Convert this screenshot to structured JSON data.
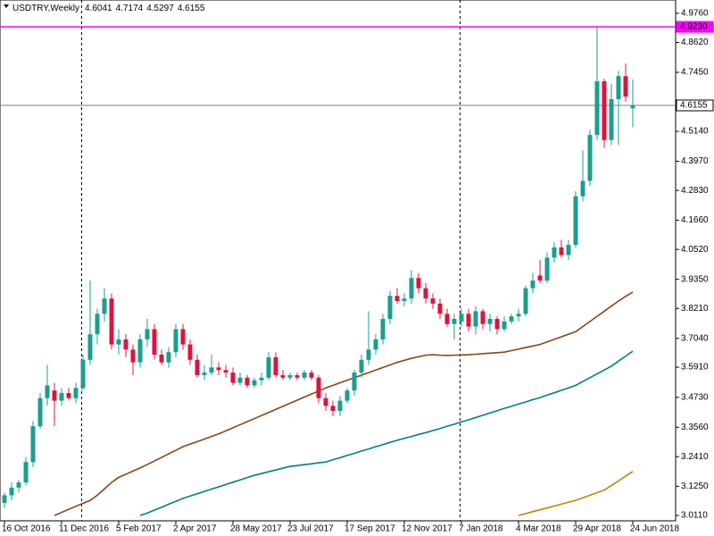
{
  "chart_data": {
    "type": "candlestick",
    "title": "USDTRY,Weekly",
    "categories": [
      "16 Oct 2016",
      null,
      null,
      null,
      null,
      null,
      null,
      null,
      "11 Dec 2016",
      null,
      null,
      null,
      null,
      null,
      null,
      null,
      "5 Feb 2017",
      null,
      null,
      null,
      null,
      null,
      null,
      null,
      "2 Apr 2017",
      null,
      null,
      null,
      null,
      null,
      null,
      null,
      "28 May 2017",
      null,
      null,
      null,
      null,
      null,
      null,
      null,
      "23 Jul 2017",
      null,
      null,
      null,
      null,
      null,
      null,
      null,
      "17 Sep 2017",
      null,
      null,
      null,
      null,
      null,
      null,
      null,
      "12 Nov 2017",
      null,
      null,
      null,
      null,
      null,
      null,
      null,
      "7 Jan 2018",
      null,
      null,
      null,
      null,
      null,
      null,
      null,
      "4 Mar 2018",
      null,
      null,
      null,
      null,
      null,
      null,
      null,
      "29 Apr 2018",
      null,
      null,
      null,
      null,
      null,
      null,
      null,
      "24 Jun 2018"
    ],
    "open": [
      3.06,
      3.09,
      3.12,
      3.14,
      3.22,
      3.36,
      3.47,
      3.5,
      3.46,
      3.49,
      3.47,
      3.51,
      3.62,
      3.72,
      3.8,
      3.86,
      3.68,
      3.7,
      3.66,
      3.61,
      3.7,
      3.74,
      3.64,
      3.61,
      3.65,
      3.74,
      3.68,
      3.62,
      3.56,
      3.57,
      3.59,
      3.58,
      3.57,
      3.53,
      3.55,
      3.52,
      3.54,
      3.55,
      3.63,
      3.56,
      3.55,
      3.56,
      3.55,
      3.57,
      3.55,
      3.47,
      3.44,
      3.42,
      3.46,
      3.5,
      3.57,
      3.62,
      3.66,
      3.7,
      3.78,
      3.87,
      3.85,
      3.86,
      3.94,
      3.9,
      3.86,
      3.84,
      3.8,
      3.76,
      3.77,
      3.8,
      3.75,
      3.81,
      3.76,
      3.78,
      3.74,
      3.77,
      3.79,
      3.8,
      3.9,
      3.95,
      3.93,
      4.02,
      4.06,
      4.03,
      4.07,
      4.26,
      4.32,
      4.5,
      4.71,
      4.48,
      4.64,
      4.73,
      4.6041
    ],
    "high": [
      3.1,
      3.14,
      3.15,
      3.24,
      3.38,
      3.49,
      3.6,
      3.53,
      3.51,
      3.51,
      3.53,
      3.64,
      3.93,
      3.82,
      3.9,
      3.88,
      3.74,
      3.72,
      3.68,
      3.72,
      3.78,
      3.76,
      3.66,
      3.67,
      3.76,
      3.76,
      3.7,
      3.64,
      3.6,
      3.64,
      3.61,
      3.6,
      3.59,
      3.57,
      3.56,
      3.55,
      3.57,
      3.65,
      3.65,
      3.58,
      3.57,
      3.57,
      3.58,
      3.58,
      3.56,
      3.49,
      3.46,
      3.48,
      3.51,
      3.58,
      3.64,
      3.81,
      3.72,
      3.8,
      3.89,
      3.9,
      3.88,
      3.97,
      3.96,
      3.92,
      3.88,
      3.86,
      3.82,
      3.8,
      3.82,
      3.82,
      3.83,
      3.82,
      3.8,
      3.79,
      3.79,
      3.8,
      3.82,
      3.91,
      3.96,
      4.01,
      4.04,
      4.08,
      4.09,
      4.09,
      4.28,
      4.44,
      4.52,
      4.923,
      4.72,
      4.7,
      4.75,
      4.78,
      4.7174
    ],
    "low": [
      3.04,
      3.07,
      3.1,
      3.13,
      3.2,
      3.35,
      3.44,
      3.36,
      3.44,
      3.46,
      3.45,
      3.5,
      3.6,
      3.68,
      3.77,
      3.66,
      3.64,
      3.63,
      3.56,
      3.59,
      3.67,
      3.62,
      3.6,
      3.59,
      3.63,
      3.66,
      3.6,
      3.55,
      3.54,
      3.56,
      3.56,
      3.55,
      3.52,
      3.52,
      3.51,
      3.51,
      3.52,
      3.54,
      3.55,
      3.54,
      3.54,
      3.54,
      3.54,
      3.54,
      3.45,
      3.42,
      3.4,
      3.4,
      3.45,
      3.48,
      3.55,
      3.6,
      3.64,
      3.68,
      3.76,
      3.84,
      3.83,
      3.84,
      3.88,
      3.84,
      3.82,
      3.78,
      3.75,
      3.7,
      3.75,
      3.73,
      3.72,
      3.74,
      3.73,
      3.72,
      3.73,
      3.76,
      3.77,
      3.79,
      3.88,
      3.92,
      3.92,
      4.0,
      4.02,
      4.01,
      4.06,
      4.24,
      4.3,
      4.48,
      4.45,
      4.46,
      4.46,
      4.63,
      4.5297
    ],
    "close": [
      3.09,
      3.12,
      3.14,
      3.22,
      3.36,
      3.47,
      3.52,
      3.46,
      3.49,
      3.47,
      3.51,
      3.62,
      3.72,
      3.8,
      3.86,
      3.68,
      3.7,
      3.66,
      3.61,
      3.7,
      3.74,
      3.64,
      3.61,
      3.65,
      3.74,
      3.68,
      3.62,
      3.56,
      3.57,
      3.59,
      3.58,
      3.57,
      3.53,
      3.55,
      3.52,
      3.54,
      3.55,
      3.63,
      3.56,
      3.55,
      3.56,
      3.55,
      3.57,
      3.55,
      3.47,
      3.44,
      3.42,
      3.46,
      3.5,
      3.57,
      3.62,
      3.66,
      3.7,
      3.78,
      3.87,
      3.85,
      3.86,
      3.94,
      3.9,
      3.86,
      3.84,
      3.8,
      3.76,
      3.78,
      3.8,
      3.75,
      3.81,
      3.76,
      3.78,
      3.74,
      3.77,
      3.79,
      3.8,
      3.9,
      3.93,
      3.93,
      4.02,
      4.06,
      4.03,
      4.07,
      4.26,
      4.32,
      4.5,
      4.71,
      4.48,
      4.64,
      4.73,
      4.65,
      4.6155
    ],
    "up_color": "#1a9e8f",
    "down_color": "#dc143c",
    "series": [
      {
        "color": "#8b4513",
        "values": [
          null,
          null,
          null,
          null,
          null,
          null,
          null,
          3.011,
          3.023,
          3.035,
          3.047,
          3.058,
          3.07,
          3.09,
          3.115,
          3.14,
          3.16,
          3.172,
          3.185,
          3.197,
          3.21,
          3.224,
          3.238,
          3.252,
          3.266,
          3.28,
          3.29,
          3.3,
          3.31,
          3.32,
          3.33,
          3.342,
          3.354,
          3.366,
          3.378,
          3.39,
          3.402,
          3.414,
          3.426,
          3.438,
          3.45,
          3.462,
          3.474,
          3.486,
          3.498,
          3.51,
          3.52,
          3.53,
          3.54,
          3.55,
          3.56,
          3.57,
          3.58,
          3.59,
          3.6,
          3.61,
          3.618,
          3.626,
          3.632,
          3.638,
          3.64,
          3.638,
          3.637,
          3.638,
          3.639,
          3.64,
          3.642,
          3.644,
          3.646,
          3.648,
          3.65,
          3.656,
          3.662,
          3.668,
          3.674,
          3.68,
          3.69,
          3.7,
          3.71,
          3.72,
          3.73,
          3.75,
          3.77,
          3.79,
          3.81,
          3.83,
          3.85,
          3.868,
          3.885
        ]
      },
      {
        "color": "#008080",
        "values": [
          null,
          null,
          null,
          null,
          null,
          null,
          null,
          null,
          null,
          null,
          null,
          null,
          null,
          null,
          null,
          null,
          null,
          null,
          null,
          3.011,
          3.02,
          3.032,
          3.043,
          3.055,
          3.066,
          3.078,
          3.087,
          3.096,
          3.105,
          3.114,
          3.123,
          3.132,
          3.141,
          3.15,
          3.159,
          3.168,
          3.175,
          3.182,
          3.189,
          3.196,
          3.203,
          3.206,
          3.21,
          3.213,
          3.217,
          3.22,
          3.229,
          3.237,
          3.246,
          3.254,
          3.263,
          3.271,
          3.28,
          3.288,
          3.297,
          3.305,
          3.313,
          3.32,
          3.328,
          3.335,
          3.343,
          3.351,
          3.36,
          3.368,
          3.377,
          3.385,
          3.394,
          3.403,
          3.412,
          3.421,
          3.43,
          3.438,
          3.447,
          3.455,
          3.464,
          3.472,
          3.482,
          3.491,
          3.501,
          3.51,
          3.52,
          3.535,
          3.55,
          3.565,
          3.58,
          3.595,
          3.615,
          3.634,
          3.654
        ]
      },
      {
        "color": "#b8860b",
        "values": [
          null,
          null,
          null,
          null,
          null,
          null,
          null,
          null,
          null,
          null,
          null,
          null,
          null,
          null,
          null,
          null,
          null,
          null,
          null,
          null,
          null,
          null,
          null,
          null,
          null,
          null,
          null,
          null,
          null,
          null,
          null,
          null,
          null,
          null,
          null,
          null,
          null,
          null,
          null,
          null,
          null,
          null,
          null,
          null,
          null,
          null,
          null,
          null,
          null,
          null,
          null,
          null,
          null,
          null,
          null,
          null,
          null,
          null,
          null,
          null,
          null,
          null,
          null,
          null,
          null,
          null,
          null,
          null,
          null,
          null,
          null,
          null,
          3.011,
          3.018,
          3.026,
          3.033,
          3.04,
          3.048,
          3.055,
          3.063,
          3.07,
          3.08,
          3.09,
          3.1,
          3.11,
          3.128,
          3.146,
          3.165,
          3.183
        ]
      }
    ],
    "horizontal_lines": [
      {
        "value": 4.923,
        "label": "4.9230",
        "color": "#ff00ff"
      },
      {
        "value": 4.6155,
        "label": "4.6155",
        "color": "#708090"
      }
    ],
    "ylim": [
      2.99,
      5.028
    ],
    "yticks": [
      {
        "value": 3.011,
        "label": "3.0110"
      },
      {
        "value": 3.125,
        "label": "3.1250"
      },
      {
        "value": 3.241,
        "label": "3.2410"
      },
      {
        "value": 3.356,
        "label": "3.3560"
      },
      {
        "value": 3.473,
        "label": "3.4730"
      },
      {
        "value": 3.591,
        "label": "3.5910"
      },
      {
        "value": 3.704,
        "label": "3.7040"
      },
      {
        "value": 3.821,
        "label": "3.8210"
      },
      {
        "value": 3.935,
        "label": "3.9350"
      },
      {
        "value": 4.052,
        "label": "4.0520"
      },
      {
        "value": 4.166,
        "label": "4.1660"
      },
      {
        "value": 4.283,
        "label": "4.2830"
      },
      {
        "value": 4.397,
        "label": "4.3970"
      },
      {
        "value": 4.514,
        "label": "4.5140"
      },
      {
        "value": 4.745,
        "label": "4.7450"
      },
      {
        "value": 4.862,
        "label": "4.8620"
      },
      {
        "value": 4.976,
        "label": "4.9760"
      }
    ]
  }
}
